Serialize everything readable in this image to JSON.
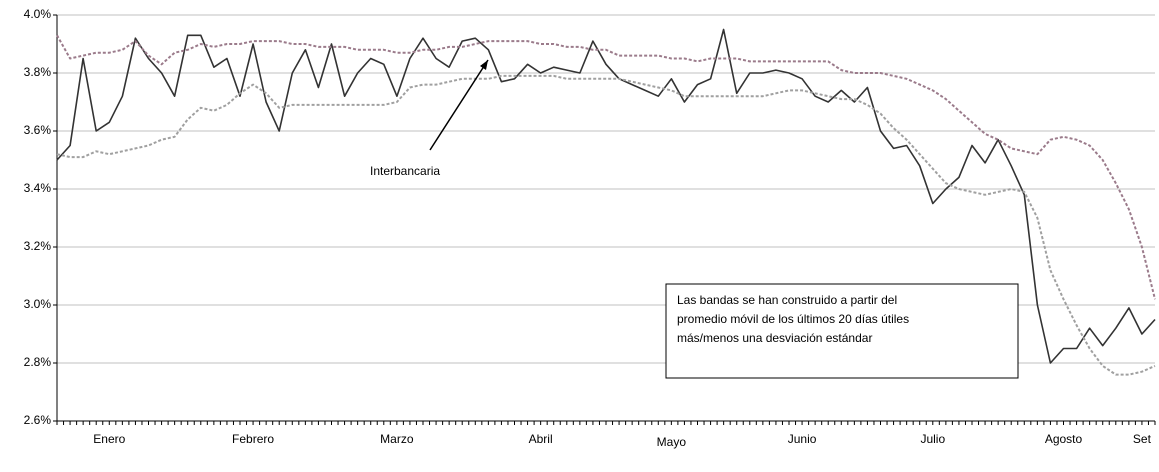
{
  "chart_data": {
    "type": "line",
    "categories": [
      null,
      null,
      null,
      null,
      "Enero",
      null,
      null,
      null,
      null,
      null,
      null,
      null,
      null,
      null,
      null,
      "Febrero",
      null,
      null,
      null,
      null,
      null,
      null,
      null,
      null,
      null,
      null,
      "Marzo",
      null,
      null,
      null,
      null,
      null,
      null,
      null,
      null,
      null,
      null,
      "Abril",
      null,
      null,
      null,
      null,
      null,
      null,
      null,
      null,
      null,
      "Mayo",
      null,
      null,
      null,
      null,
      null,
      null,
      null,
      null,
      null,
      "Junio",
      null,
      null,
      null,
      null,
      null,
      null,
      null,
      null,
      null,
      "Julio",
      null,
      null,
      null,
      null,
      null,
      null,
      null,
      null,
      null,
      "Agosto",
      null,
      null,
      null,
      null,
      null,
      "Set",
      null
    ],
    "series": [
      {
        "name": "Interbancaria",
        "color": "#333333",
        "dashed": false,
        "values": [
          3.5,
          3.55,
          3.85,
          3.6,
          3.63,
          3.72,
          3.92,
          3.85,
          3.8,
          3.72,
          3.93,
          3.93,
          3.82,
          3.85,
          3.72,
          3.9,
          3.7,
          3.6,
          3.8,
          3.88,
          3.75,
          3.9,
          3.72,
          3.8,
          3.85,
          3.83,
          3.72,
          3.85,
          3.92,
          3.85,
          3.82,
          3.91,
          3.92,
          3.88,
          3.77,
          3.78,
          3.83,
          3.8,
          3.82,
          3.81,
          3.8,
          3.91,
          3.83,
          3.78,
          3.76,
          3.74,
          3.72,
          3.78,
          3.7,
          3.76,
          3.78,
          3.95,
          3.73,
          3.8,
          3.8,
          3.81,
          3.8,
          3.78,
          3.72,
          3.7,
          3.74,
          3.7,
          3.75,
          3.6,
          3.54,
          3.55,
          3.48,
          3.35,
          3.4,
          3.44,
          3.55,
          3.49,
          3.57,
          3.48,
          3.38,
          3.0,
          2.8,
          2.85,
          2.85,
          2.92,
          2.86,
          2.92,
          2.99,
          2.9,
          2.95
        ]
      },
      {
        "color": "#9b7b8b",
        "dashed": true,
        "values": [
          3.93,
          3.85,
          3.86,
          3.87,
          3.87,
          3.88,
          3.91,
          3.86,
          3.83,
          3.87,
          3.88,
          3.9,
          3.89,
          3.9,
          3.9,
          3.91,
          3.91,
          3.91,
          3.9,
          3.9,
          3.89,
          3.89,
          3.89,
          3.88,
          3.88,
          3.88,
          3.87,
          3.87,
          3.88,
          3.88,
          3.89,
          3.89,
          3.9,
          3.91,
          3.91,
          3.91,
          3.91,
          3.9,
          3.9,
          3.89,
          3.89,
          3.88,
          3.88,
          3.86,
          3.86,
          3.86,
          3.86,
          3.85,
          3.85,
          3.84,
          3.85,
          3.85,
          3.85,
          3.84,
          3.84,
          3.84,
          3.84,
          3.84,
          3.84,
          3.84,
          3.81,
          3.8,
          3.8,
          3.8,
          3.79,
          3.78,
          3.76,
          3.74,
          3.71,
          3.67,
          3.63,
          3.59,
          3.57,
          3.54,
          3.53,
          3.52,
          3.57,
          3.58,
          3.57,
          3.55,
          3.5,
          3.42,
          3.33,
          3.2,
          3.02
        ]
      },
      {
        "color": "#a0a0a0",
        "dashed": true,
        "values": [
          3.52,
          3.51,
          3.51,
          3.53,
          3.52,
          3.53,
          3.54,
          3.55,
          3.57,
          3.58,
          3.64,
          3.68,
          3.67,
          3.69,
          3.73,
          3.76,
          3.73,
          3.68,
          3.69,
          3.69,
          3.69,
          3.69,
          3.69,
          3.69,
          3.69,
          3.69,
          3.7,
          3.75,
          3.76,
          3.76,
          3.77,
          3.78,
          3.78,
          3.78,
          3.79,
          3.79,
          3.79,
          3.79,
          3.79,
          3.78,
          3.78,
          3.78,
          3.78,
          3.78,
          3.77,
          3.76,
          3.75,
          3.74,
          3.72,
          3.72,
          3.72,
          3.72,
          3.72,
          3.72,
          3.72,
          3.73,
          3.74,
          3.74,
          3.73,
          3.72,
          3.71,
          3.71,
          3.69,
          3.66,
          3.61,
          3.57,
          3.52,
          3.47,
          3.42,
          3.4,
          3.39,
          3.38,
          3.39,
          3.4,
          3.39,
          3.3,
          3.12,
          3.02,
          2.93,
          2.85,
          2.79,
          2.76,
          2.76,
          2.77,
          2.79
        ]
      }
    ],
    "ylim": [
      2.6,
      4.0
    ],
    "yticks": [
      {
        "value": 2.6,
        "label": "2.6%"
      },
      {
        "value": 2.8,
        "label": "2.8%"
      },
      {
        "value": 3.0,
        "label": "3.0%"
      },
      {
        "value": 3.2,
        "label": "3.2%"
      },
      {
        "value": 3.4,
        "label": "3.4%"
      },
      {
        "value": 3.6,
        "label": "3.6%"
      },
      {
        "value": 3.8,
        "label": "3.8%"
      },
      {
        "value": 4.0,
        "label": "4.0%"
      }
    ],
    "grid": true,
    "note": [
      "Las bandas se han construido a partir del",
      "promedio móvil de los últimos 20 días útiles",
      "más/menos una desviación estándar"
    ]
  }
}
